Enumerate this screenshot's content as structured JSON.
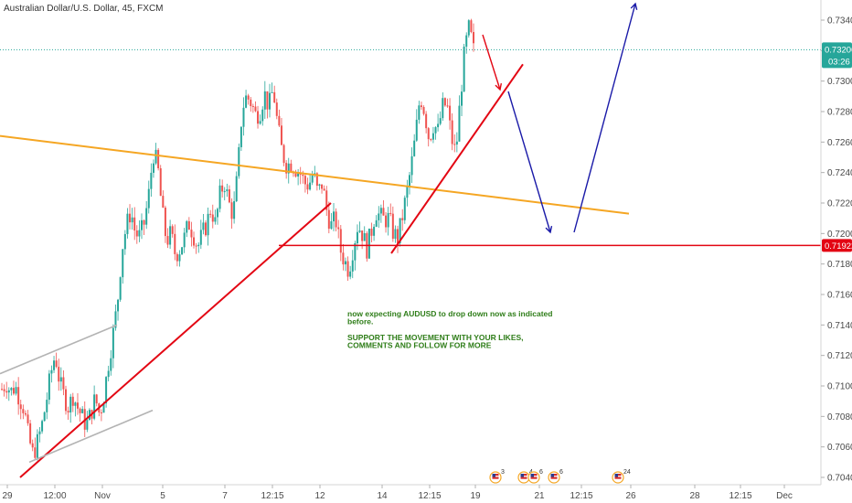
{
  "header": {
    "title": "Australian Dollar/U.S. Dollar, 45, FXCM"
  },
  "chart_data": {
    "type": "candlestick",
    "symbol": "AUDUSD",
    "ylim": [
      0.7036,
      0.7353
    ],
    "y_ticks": [
      "0.73400",
      "0.73200",
      "0.73000",
      "0.72800",
      "0.72600",
      "0.72400",
      "0.72200",
      "0.72000",
      "0.71800",
      "0.71600",
      "0.71400",
      "0.71200",
      "0.71000",
      "0.70800",
      "0.70600",
      "0.70400"
    ],
    "x_ticks": [
      "29",
      "12:00",
      "Nov",
      "5",
      "7",
      "12:15",
      "12",
      "14",
      "12:15",
      "19",
      "21",
      "12:15",
      "26",
      "28",
      "12:15",
      "Dec"
    ],
    "last_price": {
      "value": 0.73206,
      "label": "0.73206",
      "countdown": "03:26",
      "color": "#26a69a"
    },
    "support_level": {
      "value": 0.71922,
      "label": "0.71922",
      "color": "#e30613"
    },
    "up_color": "#26a69a",
    "down_color": "#ef5350",
    "candle_path": [
      0.7098,
      0.7102,
      0.7096,
      0.71,
      0.7092,
      0.7085,
      0.7066,
      0.7055,
      0.7063,
      0.7074,
      0.709,
      0.7108,
      0.7121,
      0.7102,
      0.7093,
      0.7086,
      0.7094,
      0.7086,
      0.708,
      0.7074,
      0.7082,
      0.7092,
      0.7081,
      0.7095,
      0.7116,
      0.7134,
      0.7155,
      0.719,
      0.7205,
      0.7215,
      0.72,
      0.7198,
      0.7207,
      0.7225,
      0.7253,
      0.7245,
      0.7215,
      0.7195,
      0.72,
      0.7186,
      0.719,
      0.7197,
      0.7207,
      0.72,
      0.7191,
      0.7199,
      0.7206,
      0.7217,
      0.7206,
      0.7225,
      0.7234,
      0.722,
      0.7212,
      0.724,
      0.7282,
      0.729,
      0.7286,
      0.7278,
      0.728,
      0.7292,
      0.7283,
      0.7295,
      0.727,
      0.7253,
      0.7245,
      0.7246,
      0.7243,
      0.724,
      0.7233,
      0.7232,
      0.724,
      0.7226,
      0.7233,
      0.7215,
      0.7205,
      0.721,
      0.719,
      0.7182,
      0.7176,
      0.7192,
      0.7206,
      0.72,
      0.719,
      0.7201,
      0.7215,
      0.7211,
      0.7209,
      0.721,
      0.72,
      0.7197,
      0.7211,
      0.7227,
      0.7244,
      0.7265,
      0.7291,
      0.728,
      0.7262,
      0.7272,
      0.7267,
      0.7283,
      0.7285,
      0.7263,
      0.7252,
      0.7288,
      0.732,
      0.7335,
      0.732
    ],
    "trendlines": [
      {
        "name": "resistance-orange",
        "color": "#f5a623",
        "from": [
          "29",
          0.7264
        ],
        "to": [
          "21",
          0.7213
        ]
      },
      {
        "name": "rising-support-lower",
        "color": "#e30613",
        "from": [
          "29",
          0.704
        ],
        "to": [
          "14",
          0.722
        ]
      },
      {
        "name": "rising-support-upper",
        "color": "#e30613",
        "from": [
          "14",
          0.7187
        ],
        "to": [
          "19",
          0.7311
        ]
      },
      {
        "name": "channel-top",
        "color": "#b3b3b3",
        "from": [
          "29",
          0.7108
        ],
        "to": [
          "Nov",
          0.714
        ]
      },
      {
        "name": "channel-bottom",
        "color": "#b3b3b3",
        "from": [
          "29",
          0.705
        ],
        "to": [
          "5",
          0.7084
        ]
      }
    ],
    "arrows": [
      {
        "name": "red-down-arrow",
        "color": "#e30613"
      },
      {
        "name": "blue-down-arrow",
        "color": "#1a1aa8"
      },
      {
        "name": "blue-up-arrow",
        "color": "#1a1aa8"
      }
    ],
    "annotation": [
      "now expecting AUDUSD  to drop down now as indicated",
      "before.",
      "",
      "SUPPORT THE MOVEMENT WITH YOUR LIKES,",
      "COMMENTS AND FOLLOW FOR MORE"
    ],
    "event_markers": [
      {
        "icon": "us-flag-icon",
        "count": "3"
      },
      {
        "icon": "us-flag-icon",
        "count": "4"
      },
      {
        "icon": "us-flag-icon",
        "count": "6"
      },
      {
        "icon": "us-flag-icon",
        "count": "6"
      },
      {
        "icon": "us-flag-icon",
        "count": "24"
      }
    ],
    "grid": false
  }
}
